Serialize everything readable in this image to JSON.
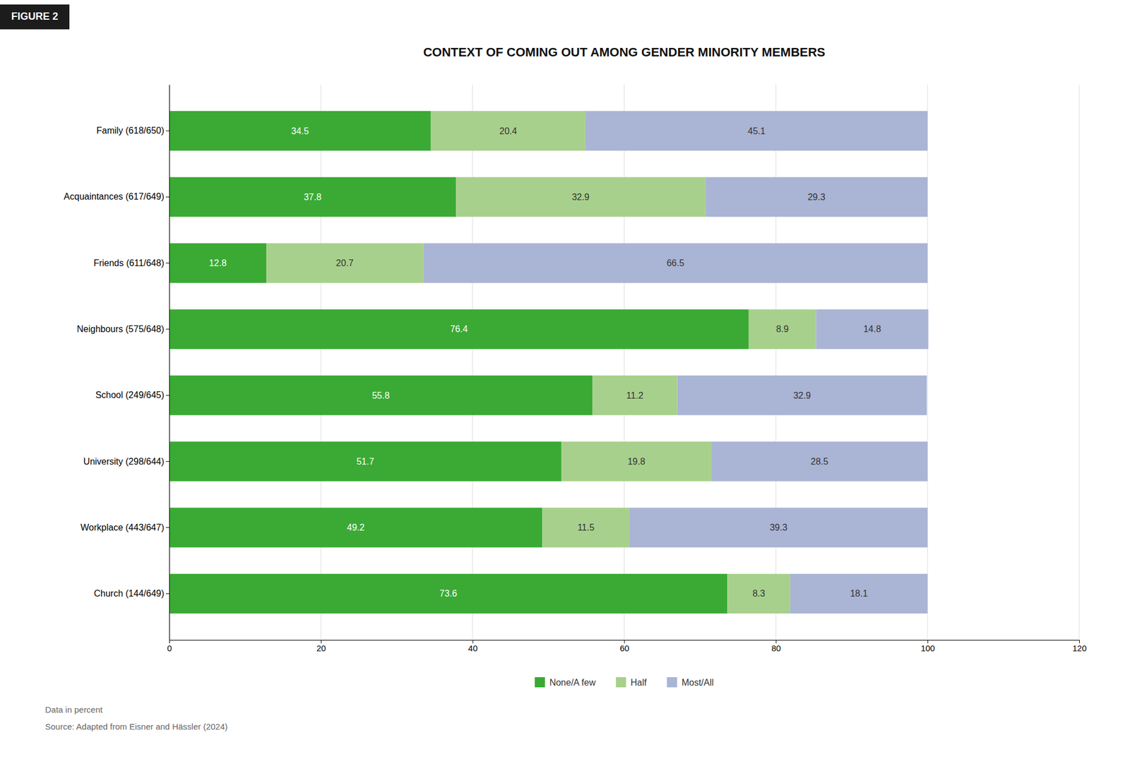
{
  "chart_data": {
    "type": "bar",
    "title": "CONTEXT OF COMING OUT AMONG GENDER MINORITY MEMBERS",
    "annotations": [
      "FIGURE 2",
      "Data in percent",
      "Source: Adapted from Eisner and Hässler (2024)"
    ],
    "categories": [
      "Family (618/650)",
      "Acquaintances (617/649)",
      "Friends (611/648)",
      "Neighbours (575/648)",
      "School (249/645)",
      "University (298/644)",
      "Workplace (443/647)",
      "Church (144/649)"
    ],
    "series": [
      {
        "name": "None/A few",
        "color": "#3aaa35",
        "values": [
          34.5,
          37.8,
          12.8,
          76.4,
          55.8,
          51.7,
          49.2,
          73.6
        ]
      },
      {
        "name": "Half",
        "color": "#a8d08d",
        "values": [
          20.4,
          32.9,
          20.7,
          8.9,
          11.2,
          19.8,
          11.5,
          8.3
        ]
      },
      {
        "name": "Most/All",
        "color": "#aab4d4",
        "values": [
          45.1,
          29.3,
          66.5,
          14.8,
          32.9,
          28.5,
          39.3,
          18.1
        ]
      }
    ],
    "orientation": "horizontal",
    "stacked": true,
    "data_labels": true,
    "xlim": [
      0,
      120
    ],
    "xticks": [
      0,
      20,
      40,
      60,
      80,
      100,
      120
    ],
    "grid": true
  }
}
